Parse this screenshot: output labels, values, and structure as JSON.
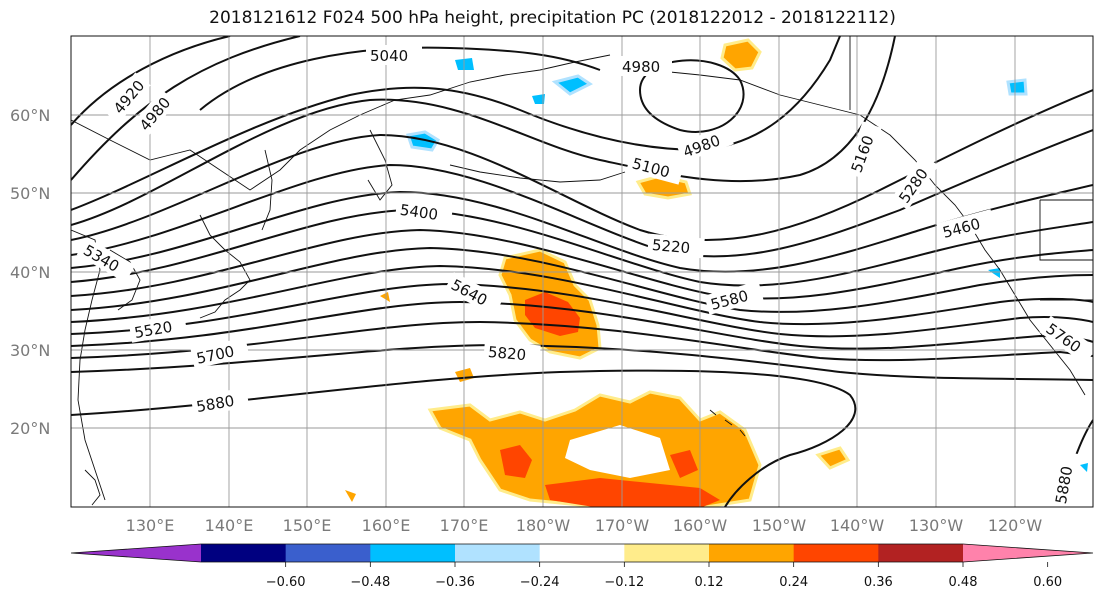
{
  "title": "2018121612 F024 500 hPa height, precipitation PC (2018122012 - 2018122112)",
  "map": {
    "lat_ticks": [
      "60°N",
      "50°N",
      "40°N",
      "30°N",
      "20°N"
    ],
    "lon_ticks": [
      "130°E",
      "140°E",
      "150°E",
      "160°E",
      "170°E",
      "180°W",
      "170°W",
      "160°W",
      "150°W",
      "140°W",
      "130°W",
      "120°W"
    ],
    "contour_labels": [
      "4920",
      "4980",
      "5040",
      "4980",
      "4980",
      "5100",
      "5160",
      "5280",
      "5400",
      "5220",
      "5460",
      "5340",
      "5640",
      "5580",
      "5520",
      "5700",
      "5820",
      "5880",
      "5760",
      "5880"
    ]
  },
  "colorbar": {
    "colors": [
      "#9932cc",
      "#000080",
      "#3a5fcd",
      "#00bfff",
      "#b0e2ff",
      "#ffffff",
      "#ffec8b",
      "#ffa500",
      "#ff4500",
      "#b22222",
      "#ff82ab"
    ],
    "tick_labels": [
      "−0.60",
      "−0.48",
      "−0.36",
      "−0.24",
      "−0.12",
      "0.12",
      "0.24",
      "0.36",
      "0.48",
      "0.60"
    ]
  }
}
